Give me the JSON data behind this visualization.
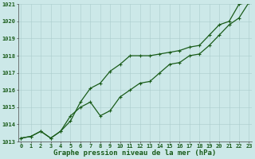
{
  "title": "Graphe pression niveau de la mer (hPa)",
  "hours": [
    0,
    1,
    2,
    3,
    4,
    5,
    6,
    7,
    8,
    9,
    10,
    11,
    12,
    13,
    14,
    15,
    16,
    17,
    18,
    19,
    20,
    21,
    22,
    23
  ],
  "line1": [
    1013.2,
    1013.3,
    1013.6,
    1013.2,
    1013.6,
    1014.2,
    1015.3,
    1016.1,
    1016.4,
    1017.1,
    1017.5,
    1018.0,
    1018.0,
    1018.0,
    1018.1,
    1018.2,
    1018.3,
    1018.5,
    1018.6,
    1019.2,
    1019.8,
    1020.0,
    1021.0,
    1021.1
  ],
  "line2": [
    1013.2,
    1013.3,
    1013.6,
    1013.2,
    1013.6,
    1014.5,
    1015.0,
    1015.3,
    1014.5,
    1014.8,
    1015.6,
    1016.0,
    1016.4,
    1016.5,
    1017.0,
    1017.5,
    1017.6,
    1018.0,
    1018.1,
    1018.6,
    1019.2,
    1019.8,
    1020.2,
    1021.1
  ],
  "ylim": [
    1013,
    1021
  ],
  "yticks": [
    1013,
    1014,
    1015,
    1016,
    1017,
    1018,
    1019,
    1020,
    1021
  ],
  "xlim": [
    0,
    23
  ],
  "line_color": "#1a5c1a",
  "bg_color": "#cce8e8",
  "grid_color": "#aacccc",
  "label_color": "#1a5c1a",
  "title_fontsize": 6.5,
  "tick_fontsize": 5.0,
  "linewidth": 0.9,
  "markersize": 2.8
}
